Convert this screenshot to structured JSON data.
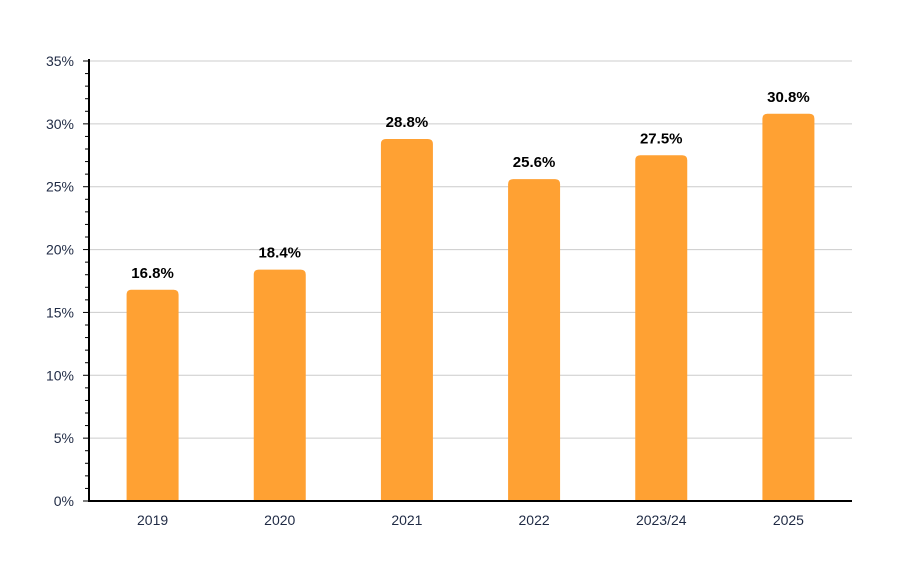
{
  "chart_data": {
    "type": "bar",
    "categories": [
      "2019",
      "2020",
      "2021",
      "2022",
      "2023/24",
      "2025"
    ],
    "values": [
      16.8,
      18.4,
      28.8,
      25.6,
      27.5,
      30.8
    ],
    "data_labels": [
      "16.8%",
      "18.4%",
      "28.8%",
      "25.6%",
      "27.5%",
      "30.8%"
    ],
    "title": "",
    "xlabel": "",
    "ylabel": "",
    "ylim": [
      0,
      35
    ],
    "y_ticks": [
      0,
      5,
      10,
      15,
      20,
      25,
      30,
      35
    ],
    "y_tick_labels": [
      "0%",
      "5%",
      "10%",
      "15%",
      "20%",
      "25%",
      "30%",
      "35%"
    ],
    "grid": true,
    "legend": "none",
    "colors": {
      "bar": "#ffa133",
      "grid": "#cccccc",
      "axis": "#000000",
      "tick_text": "#1f2a44",
      "label_text": "#000000"
    }
  }
}
